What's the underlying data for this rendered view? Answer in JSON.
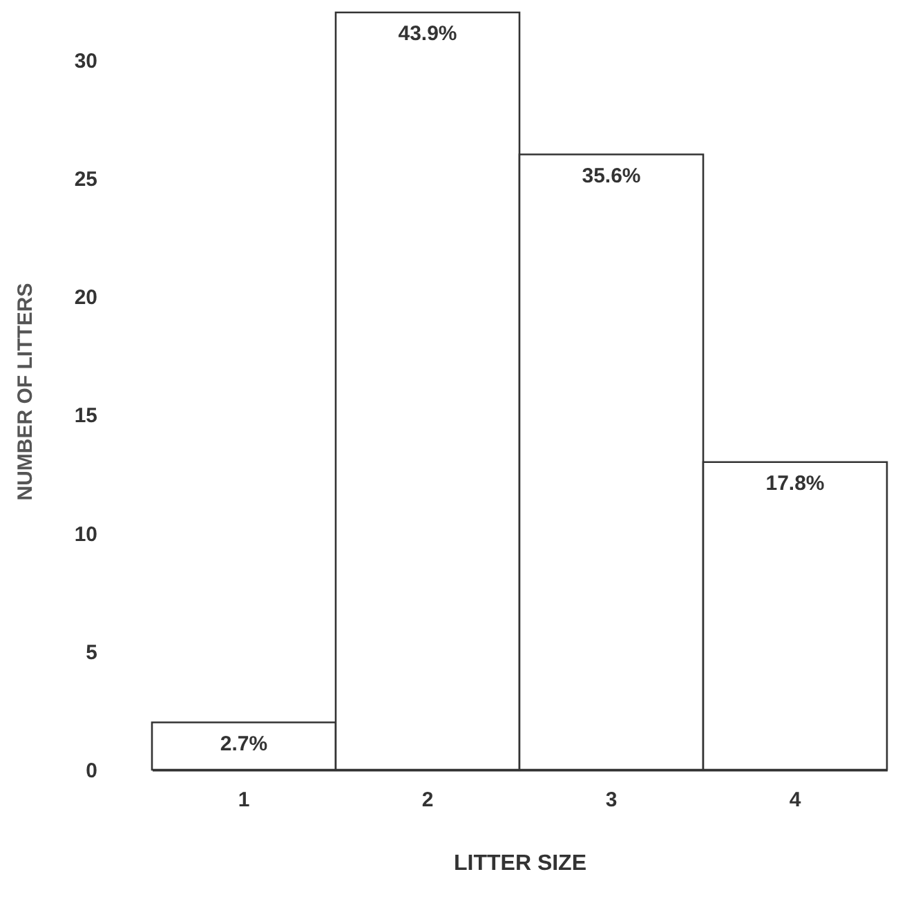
{
  "chart_data": {
    "type": "bar",
    "xlabel": "LITTER SIZE",
    "ylabel": "NUMBER OF LITTERS",
    "categories": [
      "1",
      "2",
      "3",
      "4"
    ],
    "values": [
      2,
      32,
      26,
      13
    ],
    "annotations": [
      {
        "text": "2.7%",
        "x": "1",
        "y": 2
      },
      {
        "text": "43.9%",
        "x": "2",
        "y": 32
      },
      {
        "text": "35.6%",
        "x": "3",
        "y": 26
      },
      {
        "text": "17.8%",
        "x": "4",
        "y": 13
      }
    ],
    "color": "#ffffff",
    "ylim": [
      0,
      32
    ],
    "yticks": [
      0,
      5,
      10,
      15,
      20,
      25,
      30
    ],
    "grid": false
  }
}
